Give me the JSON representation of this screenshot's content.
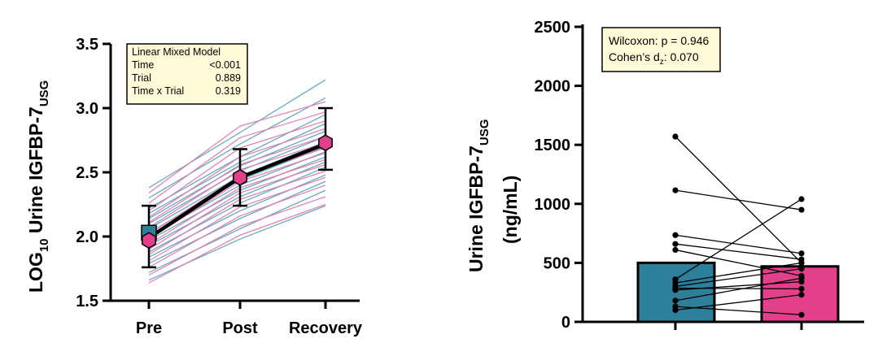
{
  "colors": {
    "teal": "#2e7f9a",
    "teal_light": "#5aa6bd",
    "pink": "#e2408a",
    "pink_light": "#e47bb0",
    "box_fill": "#fffbd8"
  },
  "chart_data": [
    {
      "type": "line",
      "ylabel_main": "LOG",
      "ylabel_sub10": "10",
      "ylabel_rest": " Urine IGFBP-7",
      "ylabel_subscript": "USG",
      "categories": [
        "Pre",
        "Post",
        "Recovery"
      ],
      "ylim": [
        1.5,
        3.5
      ],
      "yticks": [
        "1.5",
        "2.0",
        "2.5",
        "3.0",
        "3.5"
      ],
      "ytick_values": [
        1.5,
        2.0,
        2.5,
        3.0,
        3.5
      ],
      "stats_box": {
        "title": "Linear Mixed Model",
        "rows": [
          {
            "label": "Time",
            "value": "<0.001"
          },
          {
            "label": "Trial",
            "value": "0.889"
          },
          {
            "label": "Time x Trial",
            "value": "0.319"
          }
        ]
      },
      "mean": {
        "values": [
          1.99,
          2.46,
          2.72
        ],
        "upper": [
          2.24,
          2.68,
          3.0
        ],
        "lower": [
          1.76,
          2.24,
          2.52
        ]
      },
      "series": [
        {
          "name": "trial-teal",
          "color": "#5aa6bd",
          "lines": [
            [
              2.38,
              2.81,
              3.22
            ],
            [
              2.3,
              2.72,
              3.08
            ],
            [
              2.22,
              2.62,
              2.95
            ],
            [
              2.18,
              2.58,
              2.88
            ],
            [
              2.14,
              2.55,
              2.82
            ],
            [
              2.1,
              2.51,
              2.78
            ],
            [
              2.06,
              2.47,
              2.74
            ],
            [
              2.03,
              2.44,
              2.7
            ],
            [
              2.0,
              2.4,
              2.66
            ],
            [
              1.97,
              2.36,
              2.62
            ],
            [
              1.93,
              2.31,
              2.58
            ],
            [
              1.88,
              2.26,
              2.54
            ],
            [
              1.84,
              2.2,
              2.48
            ],
            [
              1.79,
              2.14,
              2.43
            ],
            [
              1.72,
              2.06,
              2.36
            ],
            [
              1.66,
              1.98,
              2.24
            ]
          ]
        },
        {
          "name": "trial-pink",
          "color": "#e47bb0",
          "lines": [
            [
              2.34,
              2.86,
              3.05
            ],
            [
              2.26,
              2.77,
              2.97
            ],
            [
              2.2,
              2.69,
              2.9
            ],
            [
              2.15,
              2.62,
              2.84
            ],
            [
              2.11,
              2.56,
              2.78
            ],
            [
              2.07,
              2.52,
              2.73
            ],
            [
              2.02,
              2.47,
              2.69
            ],
            [
              1.98,
              2.43,
              2.65
            ],
            [
              1.94,
              2.38,
              2.6
            ],
            [
              1.9,
              2.34,
              2.56
            ],
            [
              1.86,
              2.29,
              2.51
            ],
            [
              1.81,
              2.23,
              2.46
            ],
            [
              1.76,
              2.16,
              2.4
            ],
            [
              1.7,
              2.08,
              2.31
            ],
            [
              1.64,
              2.01,
              2.25
            ]
          ]
        }
      ],
      "markers": {
        "teal_pre": 2.03,
        "pink": [
          1.97,
          2.46,
          2.73
        ]
      }
    },
    {
      "type": "bar",
      "ylabel_line1": "Urine IGFBP-7",
      "ylabel_subscript": "USG",
      "ylabel_line2": "(ng/mL)",
      "ylim": [
        0,
        2500
      ],
      "yticks": [
        "0",
        "500",
        "1000",
        "1500",
        "2000",
        "2500"
      ],
      "ytick_values": [
        0,
        500,
        1000,
        1500,
        2000,
        2500
      ],
      "bars": [
        {
          "name": "trial-teal",
          "value": 500,
          "color": "#2e7f9a"
        },
        {
          "name": "trial-pink",
          "value": 470,
          "color": "#e2408a"
        }
      ],
      "pairs": [
        [
          1570,
          500
        ],
        [
          1115,
          950
        ],
        [
          735,
          580
        ],
        [
          660,
          530
        ],
        [
          610,
          390
        ],
        [
          360,
          1040
        ],
        [
          330,
          500
        ],
        [
          300,
          450
        ],
        [
          285,
          280
        ],
        [
          270,
          340
        ],
        [
          180,
          370
        ],
        [
          130,
          60
        ],
        [
          100,
          230
        ]
      ],
      "stats_box": {
        "line1": "Wilcoxon: p = 0.946",
        "line2_prefix": "Cohen’s d",
        "line2_sub": "z",
        "line2_suffix": ": 0.070"
      }
    }
  ]
}
